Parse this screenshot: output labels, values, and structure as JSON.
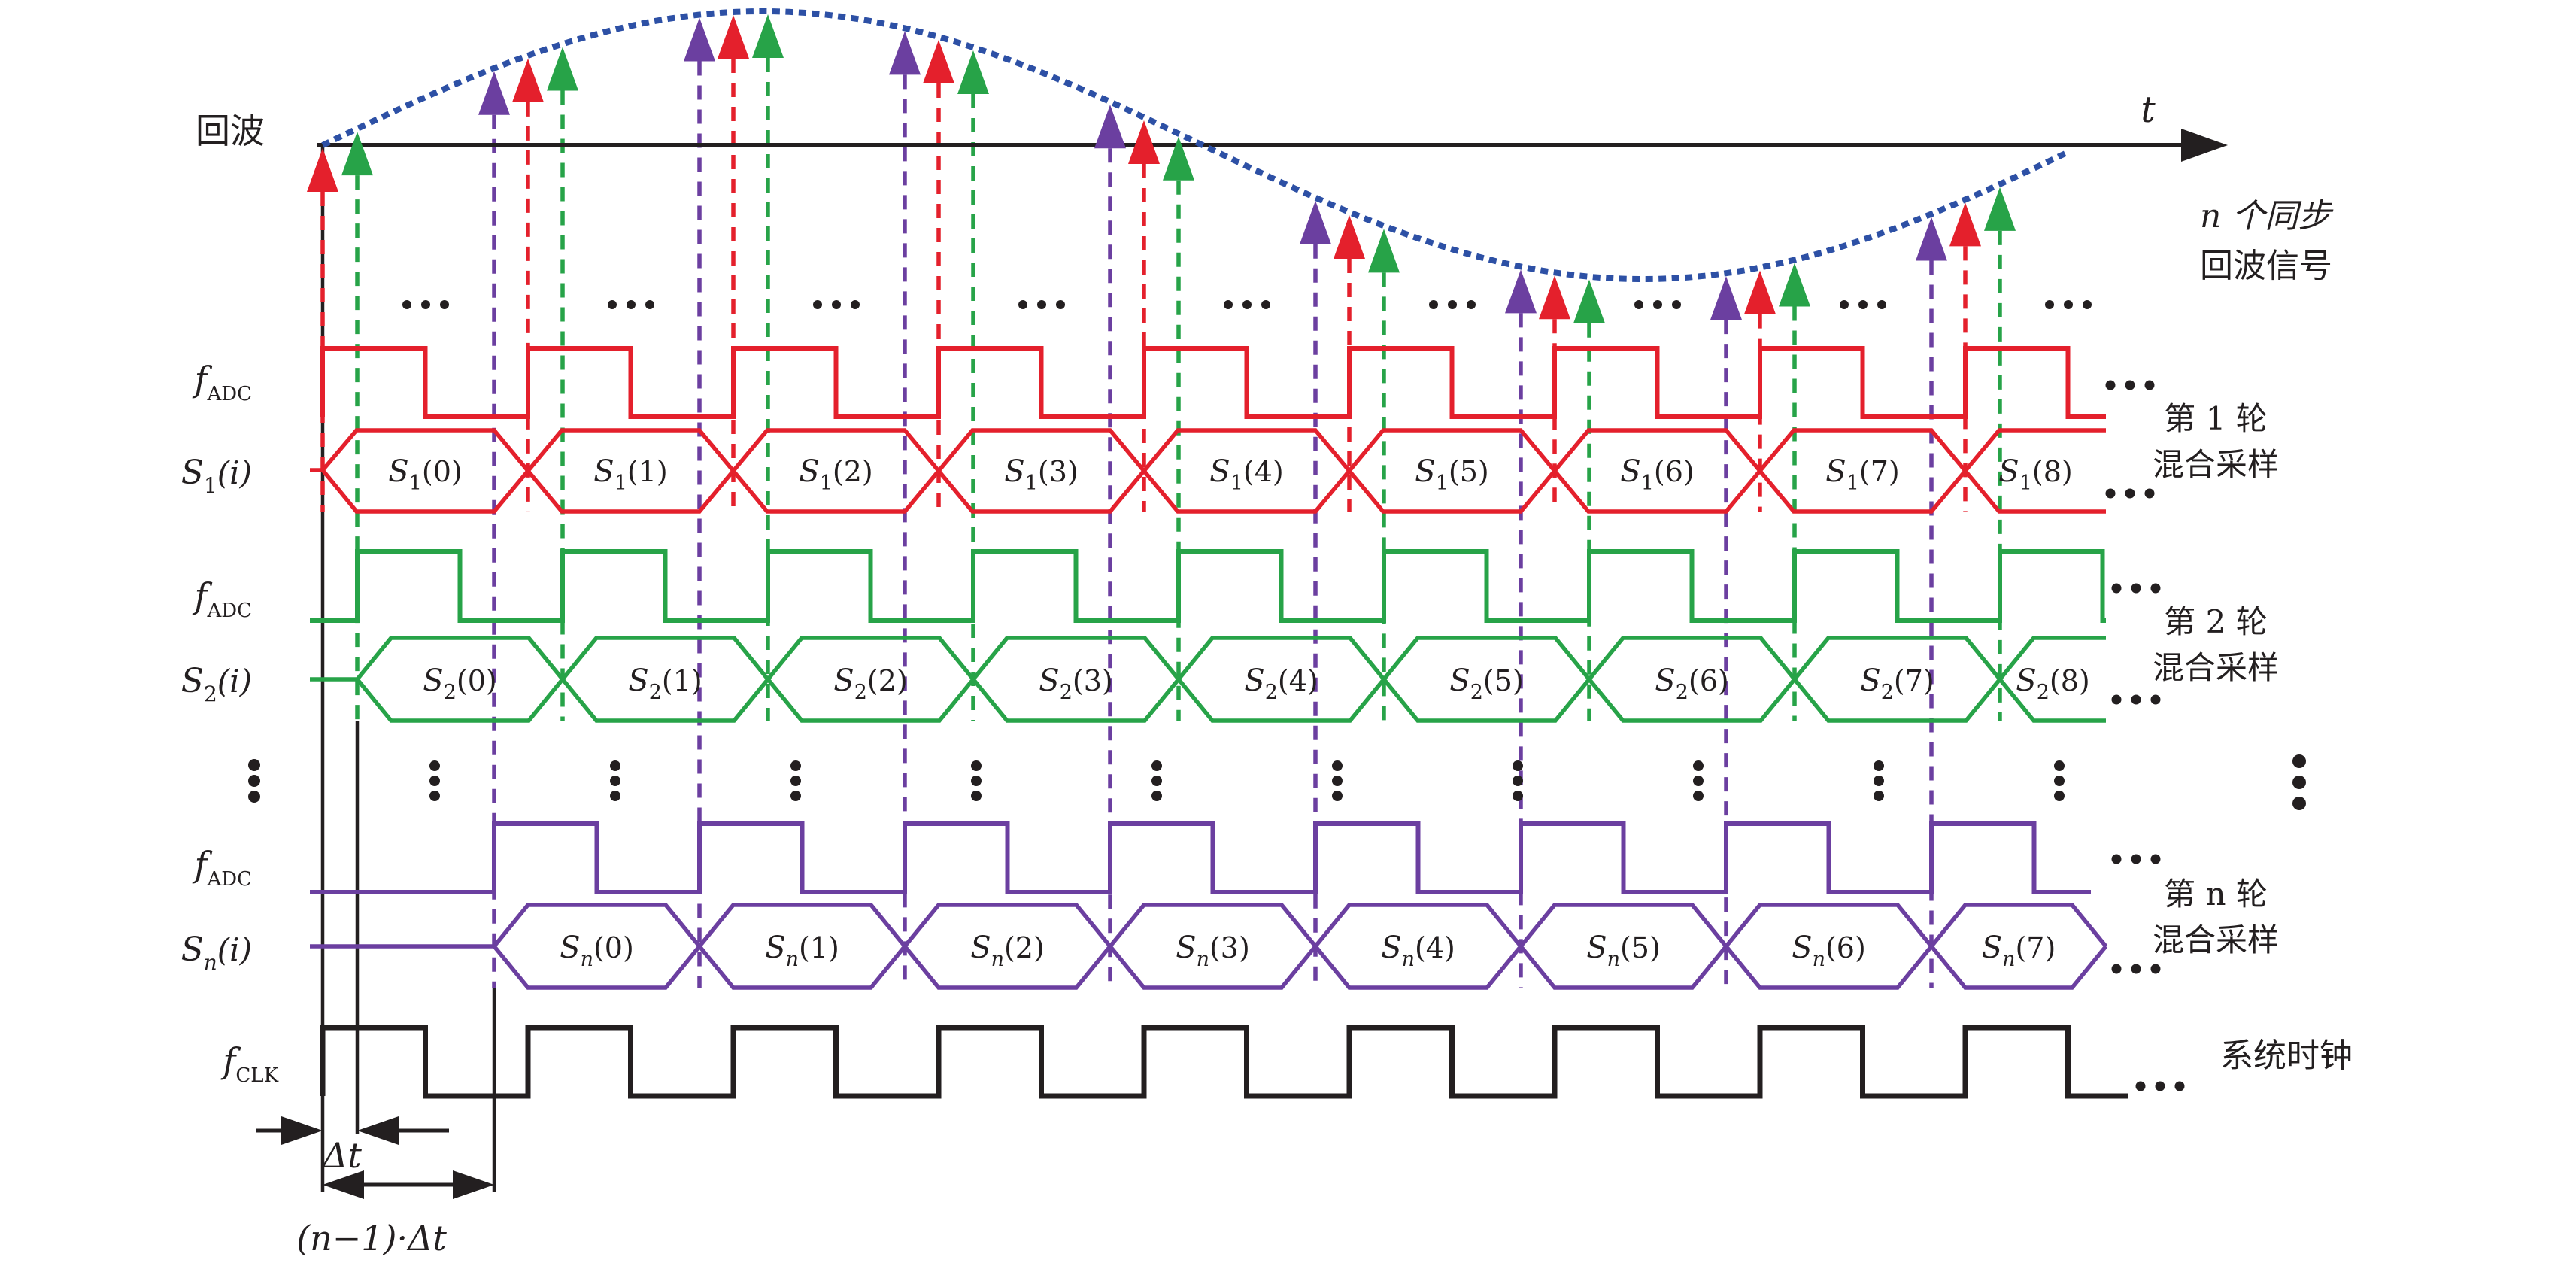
{
  "diagram": {
    "echo_label": "回波",
    "t_label": "t",
    "note_line1": "n 个同步",
    "note_line2": "回波信号",
    "adc_label": {
      "base": "f",
      "sub": "ADC"
    },
    "clk_label": {
      "base": "f",
      "sub": "CLK"
    },
    "system_clock_name": "系统时钟",
    "delta_t": "Δt",
    "total_delay": "(n−1)·Δt",
    "h_ellipsis": "···",
    "v_ellipsis": "⋮"
  },
  "colors": {
    "round1": "#e4202c",
    "round2": "#27a348",
    "round_n": "#6b3fa0",
    "echo_wave": "#2d50a5",
    "ink": "#231f20"
  },
  "rounds": [
    {
      "name_line1": "第 1 轮",
      "name_line2": "混合采样",
      "lane_label": {
        "base": "S",
        "sub": "1",
        "arg": "(i)"
      },
      "cell_base": "S",
      "cell_sub": "1",
      "cell_args": [
        "(0)",
        "(1)",
        "(2)",
        "(3)",
        "(4)",
        "(5)",
        "(6)",
        "(7)",
        "(8)"
      ]
    },
    {
      "name_line1": "第 2 轮",
      "name_line2": "混合采样",
      "lane_label": {
        "base": "S",
        "sub": "2",
        "arg": "(i)"
      },
      "cell_base": "S",
      "cell_sub": "2",
      "cell_args": [
        "(0)",
        "(1)",
        "(2)",
        "(3)",
        "(4)",
        "(5)",
        "(6)",
        "(7)",
        "(8)"
      ]
    },
    {
      "name_line1": "第 n 轮",
      "name_line2": "混合采样",
      "lane_label": {
        "base": "S",
        "sub": "n",
        "arg": "(i)"
      },
      "cell_base": "S",
      "cell_sub": "n",
      "cell_args": [
        "(0)",
        "(1)",
        "(2)",
        "(3)",
        "(4)",
        "(5)",
        "(6)",
        "(7)"
      ]
    }
  ]
}
